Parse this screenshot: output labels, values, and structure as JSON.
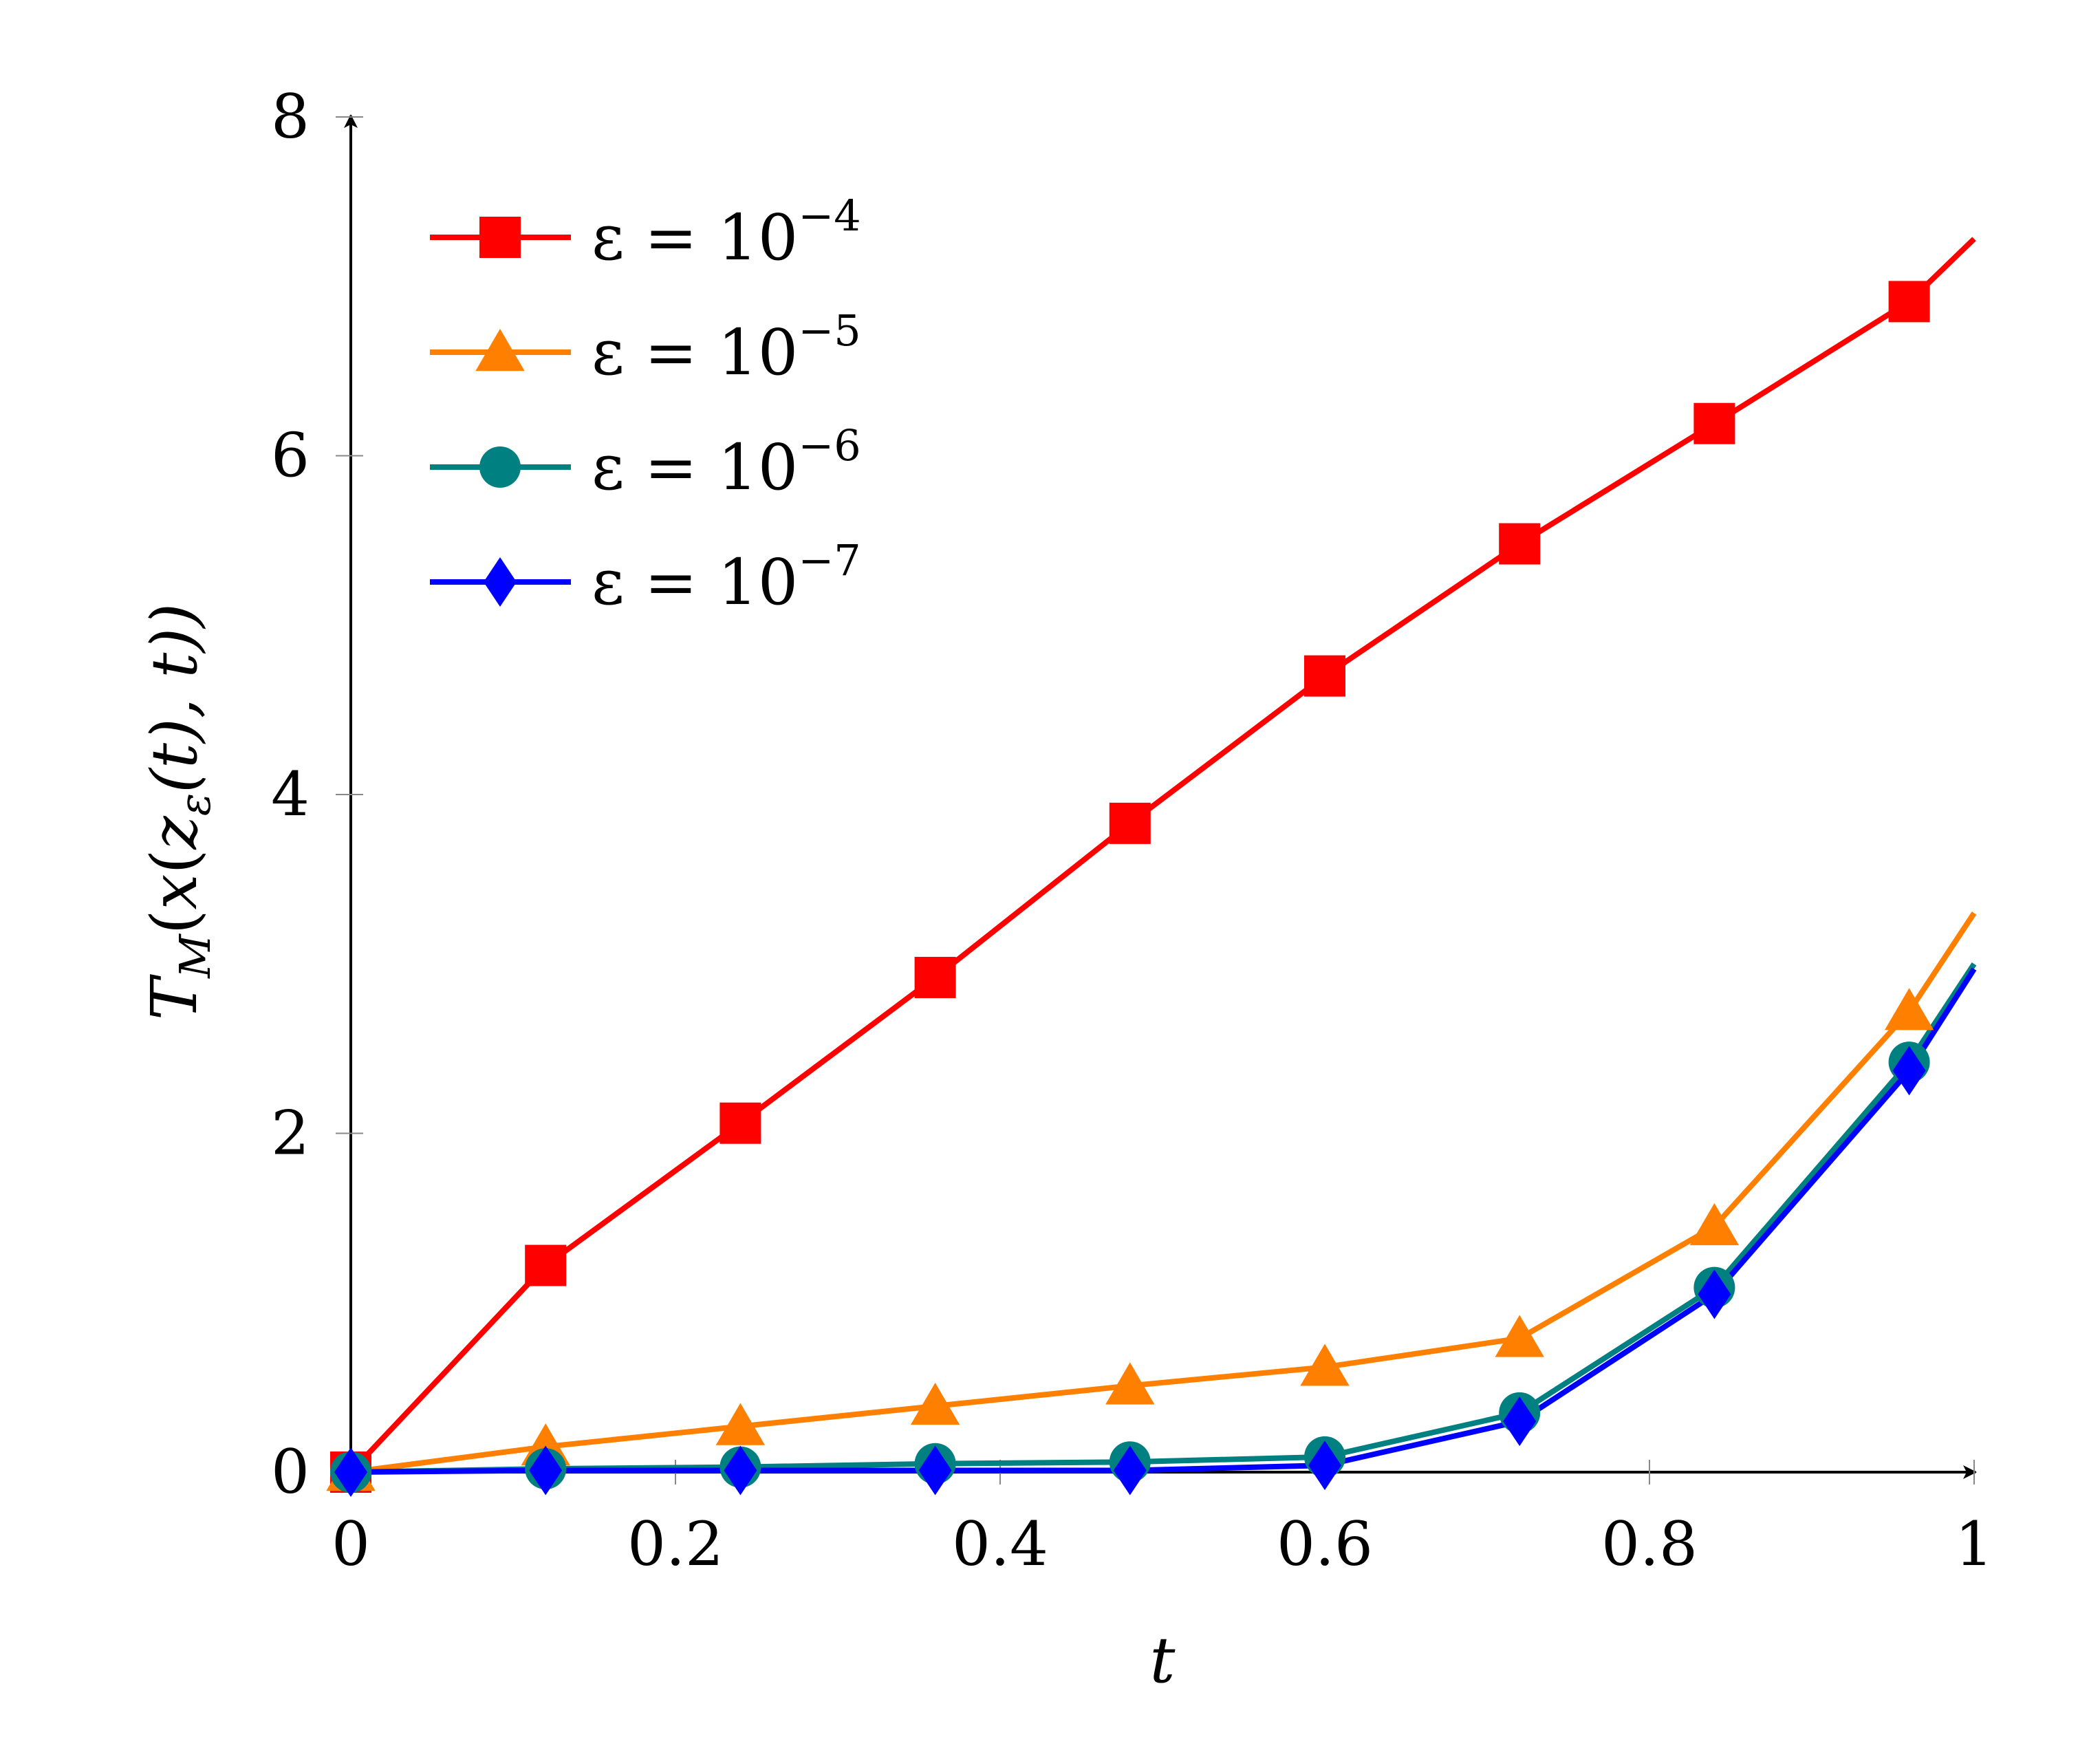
{
  "chart_data": {
    "type": "line",
    "title": "",
    "xlabel": "t",
    "ylabel": "T_M(x(z_ε(t), t))",
    "ylabel_parts": {
      "T": "T",
      "M": "M",
      "open1": "(",
      "x": "x",
      "open2": "(",
      "z": "z",
      "eps": "ε",
      "rest": "(t), t))"
    },
    "xlim": [
      0,
      1
    ],
    "ylim": [
      0,
      8
    ],
    "xticks": [
      0,
      0.2,
      0.4,
      0.6,
      0.8,
      1
    ],
    "xtick_labels": [
      "0",
      "0.2",
      "0.4",
      "0.6",
      "0.8",
      "1"
    ],
    "yticks": [
      0,
      2,
      4,
      6,
      8
    ],
    "ytick_labels": [
      "0",
      "2",
      "4",
      "6",
      "8"
    ],
    "grid": false,
    "legend_position": "top-left",
    "series": [
      {
        "name": "ε = 10^-4",
        "label_main": "ε = 10",
        "label_exp": "−4",
        "color": "#ff0000",
        "marker": "square",
        "x": [
          0,
          0.12,
          0.24,
          0.36,
          0.48,
          0.6,
          0.72,
          0.84,
          0.96,
          1.0
        ],
        "y": [
          0,
          1.22,
          2.06,
          2.92,
          3.83,
          4.7,
          5.48,
          6.19,
          6.91,
          7.28
        ],
        "marked": [
          true,
          true,
          true,
          true,
          true,
          true,
          true,
          true,
          true,
          false
        ]
      },
      {
        "name": "ε = 10^-5",
        "label_main": "ε = 10",
        "label_exp": "−5",
        "color": "#ff8000",
        "marker": "triangle",
        "x": [
          0,
          0.12,
          0.24,
          0.36,
          0.48,
          0.6,
          0.72,
          0.84,
          0.96,
          1.0
        ],
        "y": [
          0,
          0.15,
          0.27,
          0.39,
          0.51,
          0.62,
          0.79,
          1.45,
          2.72,
          3.3
        ],
        "marked": [
          true,
          true,
          true,
          true,
          true,
          true,
          true,
          true,
          true,
          false
        ]
      },
      {
        "name": "ε = 10^-6",
        "label_main": "ε = 10",
        "label_exp": "−6",
        "color": "#008080",
        "marker": "circle",
        "x": [
          0,
          0.12,
          0.24,
          0.36,
          0.48,
          0.6,
          0.72,
          0.84,
          0.96,
          1.0
        ],
        "y": [
          0,
          0.02,
          0.03,
          0.05,
          0.06,
          0.09,
          0.35,
          1.09,
          2.42,
          3.0
        ],
        "marked": [
          true,
          true,
          true,
          true,
          true,
          true,
          true,
          true,
          true,
          false
        ]
      },
      {
        "name": "ε = 10^-7",
        "label_main": "ε = 10",
        "label_exp": "−7",
        "color": "#0000ff",
        "marker": "diamond",
        "x": [
          0,
          0.12,
          0.24,
          0.36,
          0.48,
          0.6,
          0.72,
          0.84,
          0.96,
          1.0
        ],
        "y": [
          0,
          0.01,
          0.01,
          0.01,
          0.01,
          0.04,
          0.3,
          1.05,
          2.37,
          2.97
        ],
        "marked": [
          true,
          true,
          true,
          true,
          true,
          true,
          true,
          true,
          true,
          false
        ]
      }
    ]
  }
}
